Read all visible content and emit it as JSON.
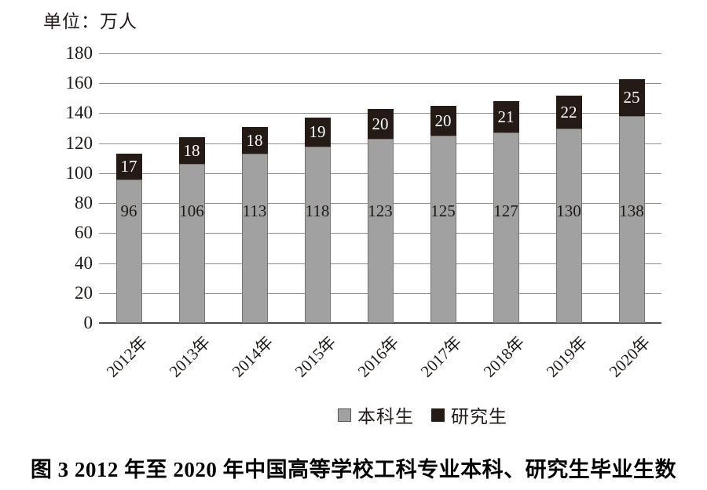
{
  "unit_label": "单位：万人",
  "caption": "图 3  2012 年至 2020 年中国高等学校工科专业本科、研究生毕业生数",
  "colors": {
    "undergrad_fill": "#a1a1a1",
    "undergrad_border": "#777470",
    "grad_fill": "#251b16",
    "grad_border": "#251b16",
    "gridline": "#8f8f8f",
    "axis_line": "#4c4c4c",
    "label_dark": "#1f1916",
    "label_light": "#fdfdfa",
    "legend_swatch_border": "#5a5document550"
  },
  "legend": {
    "items": [
      {
        "label": "本科生",
        "color": "#a1a1a1",
        "border": "#5a5550"
      },
      {
        "label": "研究生",
        "color": "#251b16",
        "border": "#251b16"
      }
    ]
  },
  "chart_data": {
    "type": "bar",
    "stacked": true,
    "title": "",
    "xlabel": "",
    "ylabel": "单位：万人",
    "categories": [
      "2012年",
      "2013年",
      "2014年",
      "2015年",
      "2016年",
      "2017年",
      "2018年",
      "2019年",
      "2020年"
    ],
    "series": [
      {
        "name": "本科生",
        "color": "#a1a1a1",
        "border": "#777470",
        "label_color": "#1f1916",
        "values": [
          96,
          106,
          113,
          118,
          123,
          125,
          127,
          130,
          138
        ]
      },
      {
        "name": "研究生",
        "color": "#251b16",
        "border": "#251b16",
        "label_color": "#fdfdfa",
        "values": [
          17,
          18,
          18,
          19,
          20,
          20,
          21,
          22,
          25
        ]
      }
    ],
    "totals": [
      113,
      124,
      131,
      137,
      143,
      145,
      148,
      152,
      163
    ],
    "ylim": [
      0,
      180
    ],
    "ytick_interval": 20,
    "yticks": [
      0,
      20,
      40,
      60,
      80,
      100,
      120,
      140,
      160,
      180
    ],
    "grid": true,
    "legend_position": "bottom"
  }
}
